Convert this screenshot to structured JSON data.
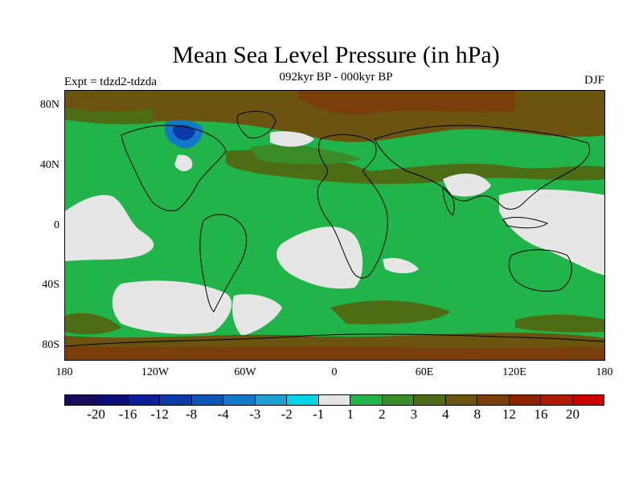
{
  "title": "Mean Sea Level Pressure (in hPa)",
  "subtitle": "092kyr BP - 000kyr BP",
  "experiment": "Expt = tdzd2-tdzda",
  "season": "DJF",
  "lat_labels": [
    "80N",
    "40N",
    "0",
    "40S",
    "80S"
  ],
  "lon_labels": [
    "180",
    "120W",
    "60W",
    "0",
    "60E",
    "120E",
    "180"
  ],
  "colorbar": {
    "colors": [
      "#1a0a5e",
      "#0d0d7a",
      "#0a1e99",
      "#0a3aa8",
      "#0a55b5",
      "#1478c8",
      "#1ea0d2",
      "#00d4e6",
      "#e6e6e6",
      "#20b44a",
      "#3a8c28",
      "#4e6c14",
      "#6b5410",
      "#7a3e0a",
      "#8c2404",
      "#b01a00",
      "#cc0000"
    ],
    "labels": [
      "-20",
      "-16",
      "-12",
      "-8",
      "-4",
      "-3",
      "-2",
      "-1",
      "1",
      "2",
      "3",
      "4",
      "8",
      "12",
      "16",
      "20"
    ]
  },
  "colors": {
    "ocean_light": "#e6e6e6",
    "green": "#20b44a",
    "dark_green": "#3a8c28",
    "olive": "#4e6c14",
    "brown": "#6b5410",
    "dark_brown": "#7a3e0a",
    "blue": "#1478c8",
    "dark_blue": "#0a3aa8"
  }
}
